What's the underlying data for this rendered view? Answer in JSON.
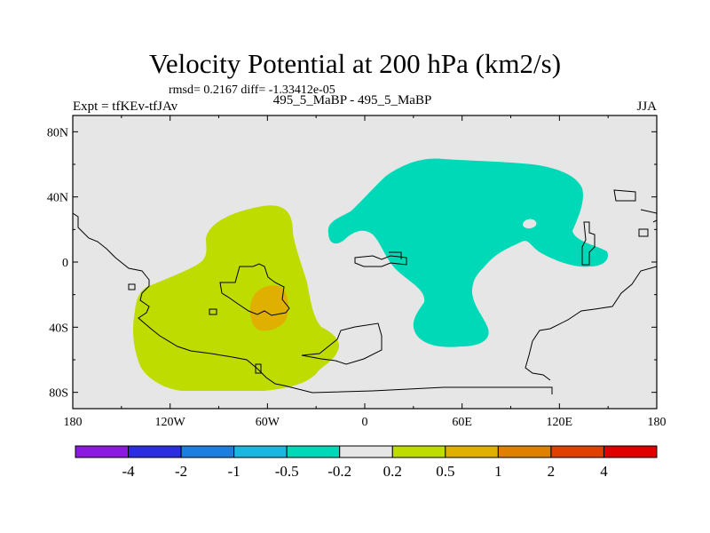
{
  "title": "Velocity Potential at 200 hPa (km2/s)",
  "stats": "rmsd= 0.2167 diff= -1.33412e-05",
  "left_string": "Expt = tfKEv-tfJAv",
  "center_string": "495_5_MaBP - 495_5_MaBP",
  "right_string": "JJA",
  "map": {
    "projection": "cylindrical equidistant",
    "lon_range": [
      -180,
      180
    ],
    "lat_range": [
      -90,
      90
    ],
    "background_color": "#e6e6e6",
    "y_ticks": [
      {
        "lat": 80,
        "label": "80N"
      },
      {
        "lat": 40,
        "label": "40N"
      },
      {
        "lat": 0,
        "label": "0"
      },
      {
        "lat": -40,
        "label": "40S"
      },
      {
        "lat": -80,
        "label": "80S"
      }
    ],
    "x_ticks": [
      {
        "lon": -180,
        "label": "180"
      },
      {
        "lon": -120,
        "label": "120W"
      },
      {
        "lon": -60,
        "label": "60W"
      },
      {
        "lon": 0,
        "label": "0"
      },
      {
        "lon": 60,
        "label": "60E"
      },
      {
        "lon": 120,
        "label": "120E"
      },
      {
        "lon": 180,
        "label": "180"
      }
    ]
  },
  "colorbar": {
    "colors": [
      "#8a1adf",
      "#2a2de0",
      "#1a7fe0",
      "#1ab8e0",
      "#00d9b8",
      "#e6e6e6",
      "#bfdc00",
      "#e0b000",
      "#e08000",
      "#e04000",
      "#e00000"
    ],
    "labels": [
      "-4",
      "-2",
      "-1",
      "-0.5",
      "-0.2",
      "0.2",
      "0.5",
      "1",
      "2",
      "4"
    ]
  },
  "chart_data": {
    "type": "map",
    "variable": "Velocity Potential at 200 hPa",
    "units": "km2/s",
    "contour_levels": [
      -4,
      -2,
      -1,
      -0.5,
      -0.2,
      0.2,
      0.5,
      1,
      2,
      4
    ],
    "regions": [
      {
        "description": "positive anomaly over South America / eastern Pacific",
        "range": [
          0.2,
          0.5
        ],
        "color": "#bfdc00"
      },
      {
        "description": "local maximum near 60W, 25S",
        "range": [
          0.5,
          1
        ],
        "color": "#e0b000"
      },
      {
        "description": "negative anomaly over Africa / Eurasia / Indian Ocean",
        "range": [
          -0.5,
          -0.2
        ],
        "color": "#00d9b8"
      }
    ]
  }
}
